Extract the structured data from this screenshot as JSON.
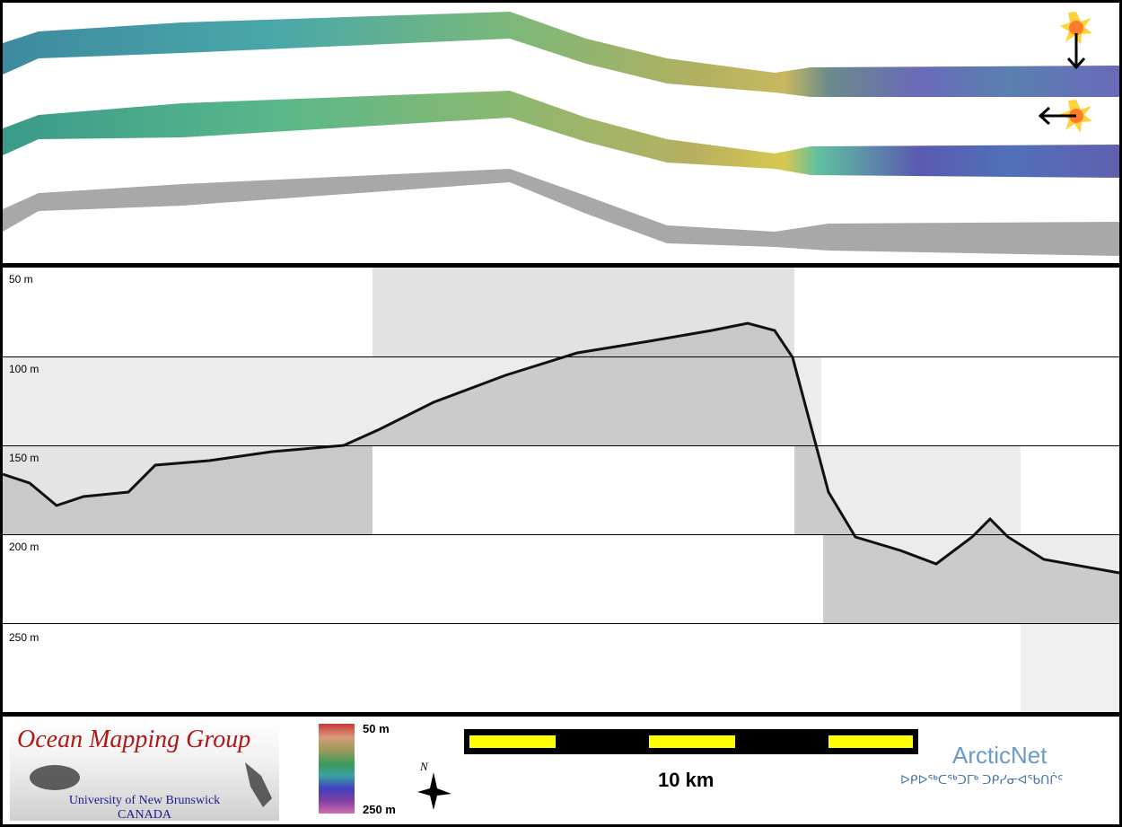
{
  "profile": {
    "depth_labels": [
      "50 m",
      "100 m",
      "150 m",
      "200 m",
      "250 m"
    ]
  },
  "legend": {
    "logo_title": "Ocean Mapping Group",
    "logo_university": "University of New Brunswick",
    "logo_country": "CANADA",
    "colorbar_top": "50 m",
    "colorbar_bottom": "250 m",
    "compass_label": "N",
    "scale_label": "10 km",
    "arcticnet_title": "ArcticNet",
    "arcticnet_syllabics": "ᐅᑭᐅᖅᑕᖅᑐᒥᒃ ᑐᑭᓯᓂᐊᖃᑎᒌᑦ"
  },
  "colors": {
    "scale_fill": "#ffff00",
    "logo_title": "#b01818",
    "logo_sub": "#1a1a8c",
    "arcticnet": "#6a9ac8"
  },
  "icons": [
    "sun-icon",
    "arrow-down-icon",
    "arrow-left-icon",
    "compass-icon"
  ]
}
